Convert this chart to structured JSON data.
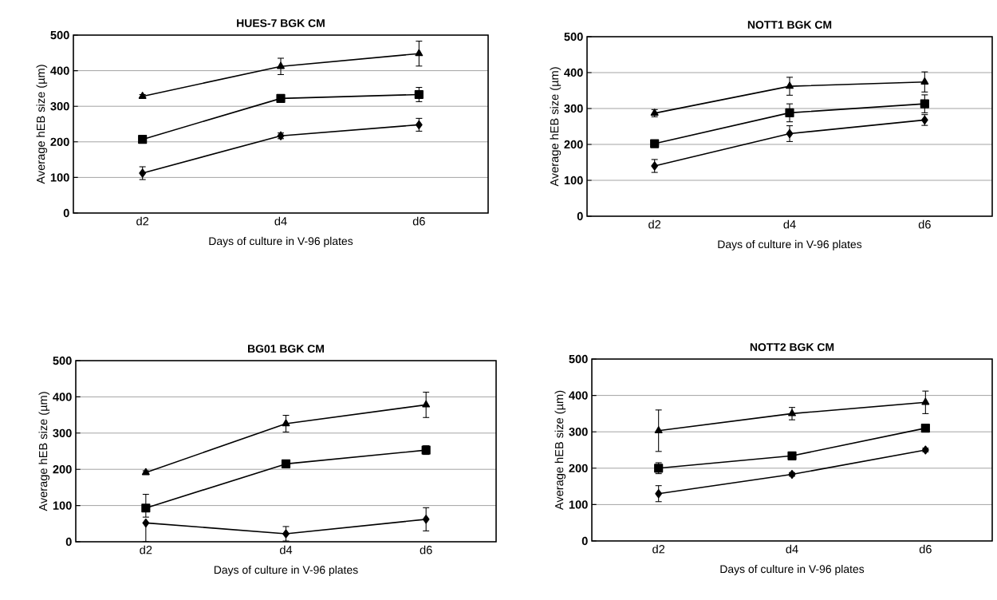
{
  "chart_data": [
    {
      "type": "line",
      "title": "HUES-7 BGK CM",
      "xlabel": "Days of culture in V-96 plates",
      "ylabel": "Average hEB size (µm)",
      "categories": [
        "d2",
        "d4",
        "d6"
      ],
      "ylim": [
        0,
        500
      ],
      "yticks": [
        0,
        100,
        200,
        300,
        400,
        500
      ],
      "grid": "y",
      "line_style": "solid",
      "series": [
        {
          "color": "#000000",
          "marker": "triangle",
          "values": [
            328,
            412,
            448
          ],
          "errors": [
            5,
            23,
            35
          ]
        },
        {
          "color": "#000000",
          "marker": "square",
          "values": [
            207,
            322,
            333
          ],
          "errors": [
            5,
            10,
            20
          ]
        },
        {
          "color": "#000000",
          "marker": "diamond",
          "values": [
            112,
            217,
            248
          ],
          "errors": [
            18,
            8,
            18
          ]
        }
      ]
    },
    {
      "type": "line",
      "title": "NOTT1 BGK CM",
      "xlabel": "Days of culture in V-96 plates",
      "ylabel": "Average hEB size (µm)",
      "categories": [
        "d2",
        "d4",
        "d6"
      ],
      "ylim": [
        0,
        500
      ],
      "yticks": [
        0,
        100,
        200,
        300,
        400,
        500
      ],
      "grid": "y",
      "line_style": "solid",
      "series": [
        {
          "color": "#000000",
          "marker": "triangle",
          "values": [
            287,
            362,
            374
          ],
          "errors": [
            10,
            25,
            28
          ]
        },
        {
          "color": "#000000",
          "marker": "square",
          "values": [
            202,
            288,
            313
          ],
          "errors": [
            8,
            25,
            25
          ]
        },
        {
          "color": "#000000",
          "marker": "diamond",
          "values": [
            140,
            230,
            268
          ],
          "errors": [
            18,
            22,
            15
          ]
        }
      ]
    },
    {
      "type": "line",
      "title": "BG01 BGK CM",
      "xlabel": "Days of culture in V-96 plates",
      "ylabel": "Average hEB size (µm)",
      "categories": [
        "d2",
        "d4",
        "d6"
      ],
      "ylim": [
        0,
        500
      ],
      "yticks": [
        0,
        100,
        200,
        300,
        400,
        500
      ],
      "grid": "y",
      "line_style": "solid",
      "series": [
        {
          "color": "#000000",
          "marker": "triangle",
          "values": [
            191,
            326,
            378
          ],
          "errors": [
            5,
            23,
            35
          ]
        },
        {
          "color": "#000000",
          "marker": "square",
          "values": [
            93,
            215,
            253
          ],
          "errors": [
            [
              68,
              131
            ],
            5,
            12
          ]
        },
        {
          "color": "#000000",
          "marker": "diamond",
          "values": [
            52,
            22,
            62
          ],
          "errors": [
            [
              0,
              52
            ],
            20,
            32
          ]
        }
      ]
    },
    {
      "type": "line",
      "title": "NOTT2 BGK CM",
      "xlabel": "Days of culture in V-96 plates",
      "ylabel": "Average hEB size (µm)",
      "categories": [
        "d2",
        "d4",
        "d6"
      ],
      "ylim": [
        0,
        500
      ],
      "yticks": [
        0,
        100,
        200,
        300,
        400,
        500
      ],
      "grid": "y",
      "line_style": "solid",
      "series": [
        {
          "color": "#000000",
          "marker": "triangle",
          "values": [
            303,
            350,
            381
          ],
          "errors": [
            57,
            17,
            31
          ]
        },
        {
          "color": "#000000",
          "marker": "square",
          "values": [
            200,
            234,
            310
          ],
          "errors": [
            15,
            5,
            10
          ]
        },
        {
          "color": "#000000",
          "marker": "diamond",
          "values": [
            130,
            183,
            250
          ],
          "errors": [
            22,
            5,
            5
          ]
        }
      ]
    }
  ]
}
